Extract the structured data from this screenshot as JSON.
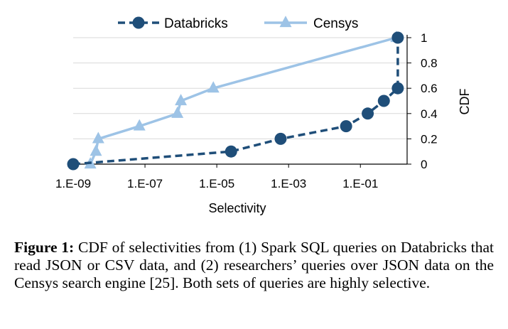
{
  "chart_data": {
    "type": "line",
    "xscale": "log",
    "xlabel": "Selectivity",
    "ylabel": "CDF",
    "xlim": [
      1e-09,
      2
    ],
    "ylim": [
      0,
      1
    ],
    "x_ticks": [
      {
        "value": 1e-09,
        "label": "1.E-09"
      },
      {
        "value": 1e-07,
        "label": "1.E-07"
      },
      {
        "value": 1e-05,
        "label": "1.E-05"
      },
      {
        "value": 0.001,
        "label": "1.E-03"
      },
      {
        "value": 0.1,
        "label": "1.E-01"
      }
    ],
    "y_ticks": [
      {
        "value": 0,
        "label": "0"
      },
      {
        "value": 0.2,
        "label": "0.2"
      },
      {
        "value": 0.4,
        "label": "0.4"
      },
      {
        "value": 0.6,
        "label": "0.6"
      },
      {
        "value": 0.8,
        "label": "0.8"
      },
      {
        "value": 1,
        "label": "1"
      }
    ],
    "grid": "horizontal",
    "legend_position": "top",
    "series": [
      {
        "name": "Databricks",
        "color": "#1f4e79",
        "line_style": "dashed",
        "marker": "circle",
        "points": [
          {
            "x": 1e-09,
            "y": 0
          },
          {
            "x": 2.5e-05,
            "y": 0.1
          },
          {
            "x": 0.0006,
            "y": 0.2
          },
          {
            "x": 0.04,
            "y": 0.3
          },
          {
            "x": 0.16,
            "y": 0.4
          },
          {
            "x": 0.45,
            "y": 0.5
          },
          {
            "x": 1.1,
            "y": 0.6
          },
          {
            "x": 1.1,
            "y": 1.0
          }
        ]
      },
      {
        "name": "Censys",
        "color": "#9dc3e6",
        "line_style": "solid",
        "marker": "triangle",
        "points": [
          {
            "x": 3e-09,
            "y": 0
          },
          {
            "x": 4.3e-09,
            "y": 0.1
          },
          {
            "x": 5e-09,
            "y": 0.2
          },
          {
            "x": 7e-08,
            "y": 0.3
          },
          {
            "x": 8e-07,
            "y": 0.4
          },
          {
            "x": 1e-06,
            "y": 0.5
          },
          {
            "x": 8e-06,
            "y": 0.6
          },
          {
            "x": 1.0,
            "y": 1.0
          }
        ]
      }
    ]
  },
  "caption": {
    "label": "Figure 1:",
    "text": " CDF of selectivities from (1) Spark SQL queries on Databricks that read JSON or CSV data, and (2) researchers’ queries over JSON data on the Censys search engine [25]. Both sets of queries are highly selective."
  }
}
